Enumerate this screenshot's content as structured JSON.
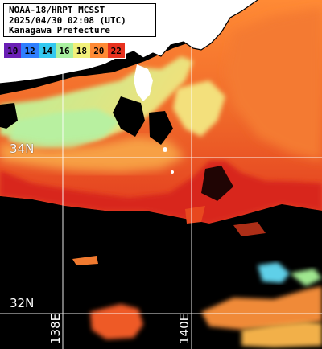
{
  "title": {
    "line1": "NOAA-18/HRPT MCSST",
    "line2": "2025/04/30 02:08 (UTC)",
    "line3": "Kanagawa Prefecture"
  },
  "scale": {
    "items": [
      {
        "label": "10",
        "color": "#6a1fb5"
      },
      {
        "label": "12",
        "color": "#2f7fff"
      },
      {
        "label": "14",
        "color": "#34c8f0"
      },
      {
        "label": "16",
        "color": "#a9f0a0"
      },
      {
        "label": "18",
        "color": "#f2f07a"
      },
      {
        "label": "20",
        "color": "#ff8a35"
      },
      {
        "label": "22",
        "color": "#e8321f"
      }
    ]
  },
  "grid": {
    "lat_labels": [
      "34N",
      "32N"
    ],
    "lon_labels": [
      "138E",
      "140E"
    ]
  },
  "colors": {
    "land": "#ffffff",
    "no_data": "#000000",
    "gridline": "#ffffff"
  }
}
